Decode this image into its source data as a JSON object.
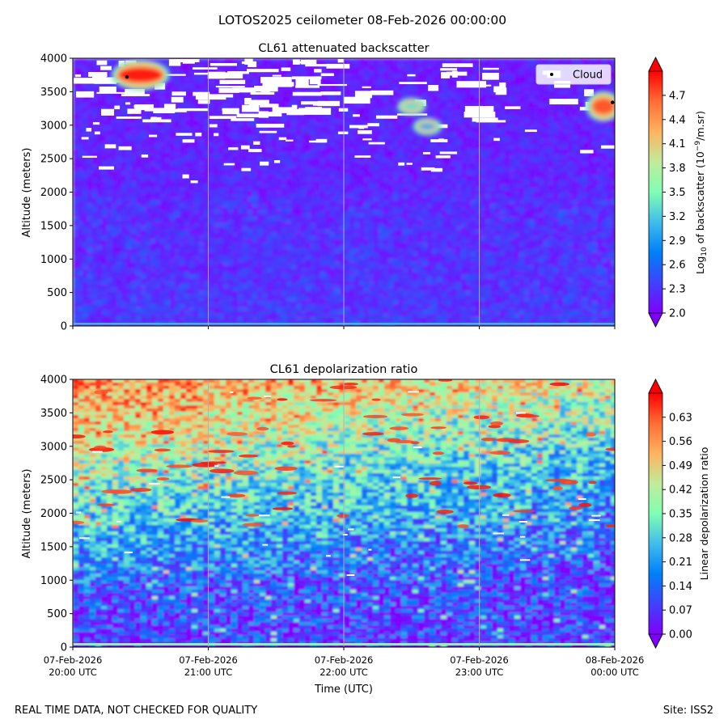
{
  "suptitle": "LOTOS2025 ceilometer 08-Feb-2026 00:00:00",
  "footer_left": "REAL TIME DATA, NOT CHECKED FOR QUALITY",
  "footer_right": "Site: ISS2",
  "xlabel": "Time (UTC)",
  "x_ticks": [
    {
      "date": "07-Feb-2026",
      "time": "20:00 UTC"
    },
    {
      "date": "07-Feb-2026",
      "time": "21:00 UTC"
    },
    {
      "date": "07-Feb-2026",
      "time": "22:00 UTC"
    },
    {
      "date": "07-Feb-2026",
      "time": "23:00 UTC"
    },
    {
      "date": "08-Feb-2026",
      "time": "00:00 UTC"
    }
  ],
  "chart_data": [
    {
      "type": "heatmap",
      "title": "CL61 attenuated backscatter",
      "ylabel": "Altitude (meters)",
      "colorbar_label_prefix": "Log",
      "colorbar_label_sub": "10",
      "colorbar_label_mid": " of backscatter (10",
      "colorbar_label_sup": "−9",
      "colorbar_label_end": "/m.sr)",
      "x_range": [
        "07-Feb-2026 20:00",
        "08-Feb-2026 00:00"
      ],
      "ylim": [
        0,
        4000
      ],
      "y_ticks": [
        "0",
        "500",
        "1000",
        "1500",
        "2000",
        "2500",
        "3000",
        "3500",
        "4000"
      ],
      "c_range": [
        2.0,
        5.0
      ],
      "c_ticks": [
        "2.0",
        "2.3",
        "2.6",
        "2.9",
        "3.2",
        "3.5",
        "3.8",
        "4.1",
        "4.4",
        "4.7"
      ],
      "colormap": "rainbow",
      "grid": "vertical",
      "legend": {
        "label": "Cloud",
        "placement": "top-right"
      },
      "cloud_base_points": [
        {
          "time": "07-Feb-2026 20:24",
          "altitude": 3720
        },
        {
          "time": "07-Feb-2026 23:59",
          "altitude": 3340
        }
      ],
      "features": [
        {
          "time": "07-Feb-2026 20:30",
          "altitude": 3750,
          "value": 4.9
        },
        {
          "time": "07-Feb-2026 23:55",
          "altitude": 3280,
          "value": 4.7
        },
        {
          "time": "07-Feb-2026 22:30",
          "altitude": 3280,
          "value": 3.3
        },
        {
          "time": "07-Feb-2026 22:37",
          "altitude": 2980,
          "value": 3.0
        }
      ]
    },
    {
      "type": "heatmap",
      "title": "CL61 depolarization ratio",
      "ylabel": "Altitude (meters)",
      "colorbar_label": "Linear depolarization ratio",
      "x_range": [
        "07-Feb-2026 20:00",
        "08-Feb-2026 00:00"
      ],
      "ylim": [
        0,
        4000
      ],
      "y_ticks": [
        "0",
        "500",
        "1000",
        "1500",
        "2000",
        "2500",
        "3000",
        "3500",
        "4000"
      ],
      "c_range": [
        0.0,
        0.7
      ],
      "c_ticks": [
        "0.00",
        "0.07",
        "0.14",
        "0.21",
        "0.28",
        "0.35",
        "0.42",
        "0.49",
        "0.56",
        "0.63"
      ],
      "colormap": "rainbow",
      "grid": "vertical"
    }
  ]
}
